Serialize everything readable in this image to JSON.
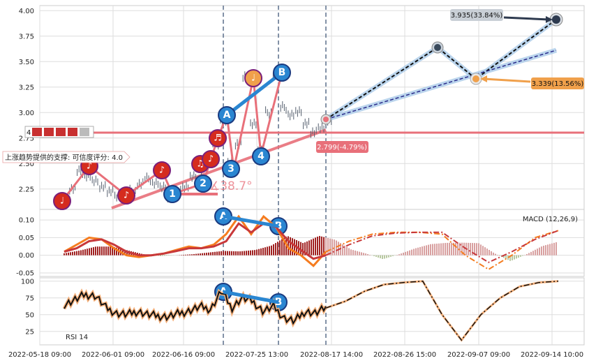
{
  "chart_data": [
    {
      "type": "line",
      "panel": "price",
      "ylim": [
        2.05,
        4.05
      ],
      "y_ticks": [
        2.25,
        2.5,
        2.75,
        3.0,
        3.25,
        3.5,
        3.75,
        4.0
      ],
      "y_tick_labels": [
        "2.25",
        "2.50",
        "2.75",
        "3.00",
        "3.25",
        "3.50",
        "3.75",
        "4.00"
      ],
      "x_tick_labels": [
        "2022-05-18 09:00",
        "2022-06-01 09:00",
        "2022-06-16 09:00",
        "2022-07-25 13:00",
        "2022-08-17 14:00",
        "2022-08-26 15:00",
        "2022-09-07 09:00",
        "2022-09-14 10:00"
      ],
      "grid": true,
      "series": [
        {
          "values": [
            2.13,
            2.25,
            2.42,
            2.38,
            2.32,
            2.28,
            2.22,
            2.19,
            2.18,
            2.23,
            2.3,
            2.35,
            2.31,
            2.26,
            2.18,
            2.22,
            2.28,
            2.37,
            2.45,
            2.52,
            2.7,
            2.92,
            2.5,
            2.7,
            3.35,
            2.9,
            2.62,
            3.0,
            3.38,
            3.05,
            2.98,
            3.0,
            2.9,
            2.8,
            2.86,
            2.92
          ]
        },
        {
          "values": [
            2.92,
            3.1,
            3.35,
            3.55,
            3.65,
            3.55,
            3.35,
            3.55,
            3.75,
            3.94
          ]
        }
      ],
      "support_level": 2.79,
      "support_label": "4",
      "trend_label": "上涨趋势提供的支撑: 可信度评分: 4.0",
      "angle_label": "∡38.7°",
      "annotations": [
        {
          "label": "3.935(33.84%)",
          "y": 3.935
        },
        {
          "label": "3.339(13.56%)",
          "y": 3.339
        },
        {
          "label": "2.799(-4.79%)",
          "y": 2.799
        }
      ],
      "wave_marks": [
        "1",
        "2",
        "3",
        "4",
        "A",
        "B"
      ]
    },
    {
      "type": "line",
      "panel": "macd",
      "title": "MACD (12,26,9)",
      "ylim": [
        -0.06,
        0.13
      ],
      "y_ticks": [
        0.1,
        0.05,
        0.0,
        -0.05
      ],
      "y_tick_labels": [
        "0.10",
        "0.05",
        "0.00",
        "-0.05"
      ],
      "series": [
        {
          "values": [
            0.01,
            0.03,
            0.05,
            0.045,
            0.02,
            0.0,
            -0.005,
            0.0,
            0.005,
            0.015,
            0.025,
            0.02,
            0.03,
            0.06,
            0.11,
            0.06,
            0.11,
            0.08,
            0.02,
            0.0,
            -0.03,
            0.01,
            0.04,
            0.06,
            0.065,
            0.065,
            0.06,
            0.0,
            -0.04,
            0.0,
            0.05,
            0.07
          ]
        },
        {
          "values": [
            0.01,
            0.02,
            0.04,
            0.045,
            0.03,
            0.01,
            0.0,
            0.0,
            0.005,
            0.012,
            0.02,
            0.02,
            0.025,
            0.04,
            0.09,
            0.065,
            0.09,
            0.08,
            0.04,
            0.015,
            -0.01,
            0.0,
            0.03,
            0.055,
            0.063,
            0.065,
            0.065,
            0.02,
            -0.02,
            0.01,
            0.045,
            0.07
          ]
        }
      ],
      "wave_marks": [
        "A",
        "B"
      ]
    },
    {
      "type": "line",
      "panel": "rsi",
      "title": "RSI 14",
      "ylim": [
        5,
        105
      ],
      "y_ticks": [
        100,
        75,
        50,
        25
      ],
      "y_tick_labels": [
        "100",
        "75",
        "50",
        "25"
      ],
      "series": [
        {
          "values": [
            65,
            72,
            80,
            78,
            60,
            52,
            50,
            55,
            50,
            48,
            47,
            52,
            56,
            62,
            58,
            85,
            60,
            75,
            70,
            55,
            62,
            45,
            40,
            55,
            52,
            60,
            70,
            85,
            95,
            98,
            100,
            50,
            12,
            50,
            75,
            92,
            98,
            100
          ]
        }
      ],
      "wave_marks": [
        "A",
        "B"
      ]
    }
  ],
  "colors": {
    "support": "#e8707a",
    "wave_blue": "#2a86d1",
    "wave_red": "#d52b1e",
    "wave_orange": "#f0a04b",
    "forecast_dark": "#2e3a4f",
    "forecast_light": "#aacbe8",
    "macd_orange": "#f57c1f",
    "macd_red": "#c8383a",
    "rsi_line": "#111111",
    "rsi_halo": "#f5b07a",
    "vline": "#5a6f8a"
  }
}
